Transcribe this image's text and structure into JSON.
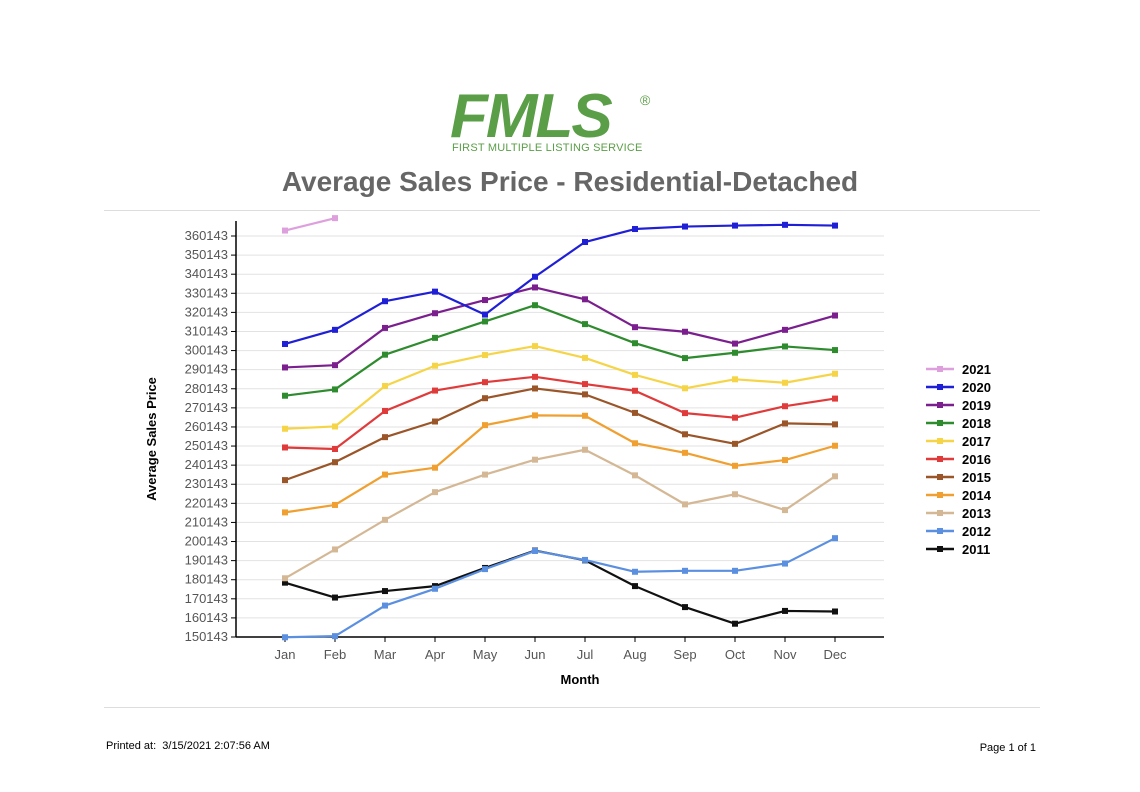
{
  "logo": {
    "text": "FMLS",
    "registered": "®",
    "subtitle": "FIRST MULTIPLE LISTING SERVICE",
    "color": "#5a9e47"
  },
  "footer": {
    "printed_label": "Printed at:",
    "printed_value": "3/15/2021 2:07:56 AM",
    "page": "Page 1 of 1"
  },
  "chart_data": {
    "type": "line",
    "title": "Average Sales Price - Residential-Detached",
    "xlabel": "Month",
    "ylabel": "Average Sales Price",
    "categories": [
      "Jan",
      "Feb",
      "Mar",
      "Apr",
      "May",
      "Jun",
      "Jul",
      "Aug",
      "Sep",
      "Oct",
      "Nov",
      "Dec"
    ],
    "yticks": [
      150143,
      160143,
      170143,
      180143,
      190143,
      200143,
      210143,
      220143,
      230143,
      240143,
      250143,
      260143,
      270143,
      280143,
      290143,
      300143,
      310143,
      320143,
      330143,
      340143,
      350143,
      360143
    ],
    "ylim": [
      150143,
      368000
    ],
    "grid": true,
    "legend_position": "right",
    "series": [
      {
        "name": "2021",
        "color": "#dda0dd",
        "values": [
          363000,
          369500,
          null,
          null,
          null,
          null,
          null,
          null,
          null,
          null,
          null,
          null
        ]
      },
      {
        "name": "2020",
        "color": "#1f1fd6",
        "values": [
          303600,
          311000,
          326000,
          331000,
          319000,
          338800,
          357000,
          363800,
          365100,
          365600,
          366000,
          365600
        ]
      },
      {
        "name": "2019",
        "color": "#7b1f8f",
        "values": [
          291300,
          292500,
          312000,
          319700,
          326600,
          333200,
          327000,
          312400,
          310000,
          303800,
          311000,
          318500
        ]
      },
      {
        "name": "2018",
        "color": "#2e8b2e",
        "values": [
          276500,
          279800,
          298000,
          306800,
          315400,
          323900,
          314000,
          304000,
          296200,
          299000,
          302300,
          300400
        ]
      },
      {
        "name": "2017",
        "color": "#f5d547",
        "values": [
          259200,
          260400,
          281600,
          292200,
          297800,
          302500,
          296300,
          287400,
          280400,
          285100,
          283300,
          288000
        ]
      },
      {
        "name": "2016",
        "color": "#e03b3b",
        "values": [
          249400,
          248600,
          268500,
          279200,
          283600,
          286400,
          282600,
          279100,
          267400,
          265000,
          271000,
          275000
        ]
      },
      {
        "name": "2015",
        "color": "#9a5528",
        "values": [
          232300,
          241700,
          254800,
          263000,
          275200,
          280300,
          277200,
          267500,
          256300,
          251300,
          262000,
          261500
        ]
      },
      {
        "name": "2014",
        "color": "#f0a030",
        "values": [
          215400,
          219300,
          235200,
          238800,
          261100,
          266200,
          266000,
          251600,
          246600,
          239800,
          242800,
          250300
        ]
      },
      {
        "name": "2013",
        "color": "#d4b896",
        "values": [
          180900,
          196000,
          211500,
          226000,
          235200,
          243000,
          248200,
          234800,
          219600,
          224900,
          216600,
          234300
        ]
      },
      {
        "name": "2012",
        "color": "#5b8fe0",
        "values": [
          150000,
          150600,
          166600,
          175400,
          185700,
          195200,
          190500,
          184300,
          184800,
          184800,
          188600,
          201900
        ]
      },
      {
        "name": "2011",
        "color": "#111111",
        "values": [
          178600,
          170800,
          174200,
          176800,
          186300,
          195400,
          190300,
          176800,
          165800,
          157100,
          163800,
          163500
        ]
      }
    ]
  }
}
